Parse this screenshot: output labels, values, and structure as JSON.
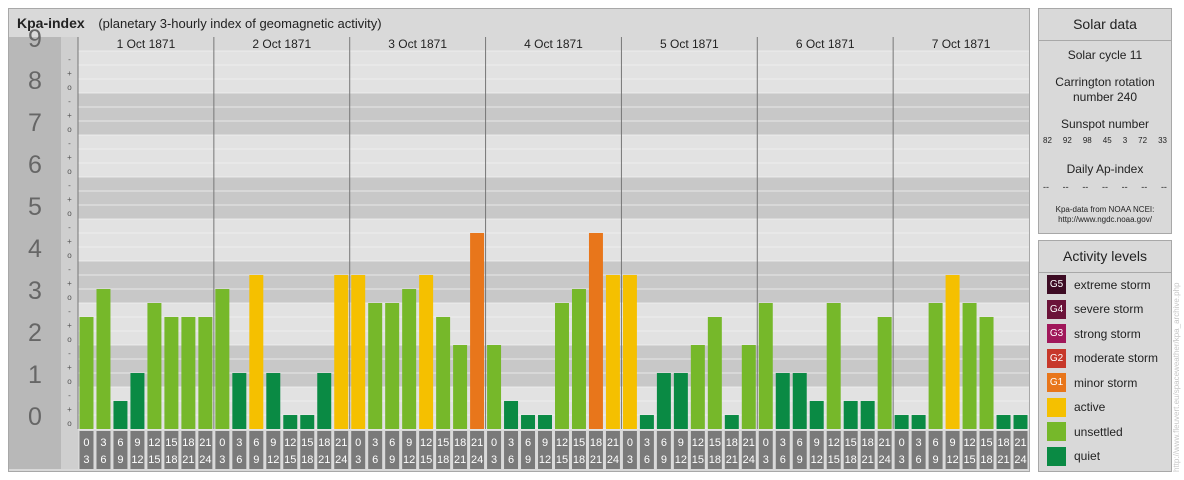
{
  "header": {
    "title": "Kpa-index",
    "subtitle": "(planetary 3-hourly index of geomagnetic activity)"
  },
  "chart_data": {
    "type": "bar",
    "title": "Kpa-index",
    "subtitle": "(planetary 3-hourly index of geomagnetic activity)",
    "ylim": [
      0,
      9
    ],
    "y_ticks": [
      "0",
      "1",
      "2",
      "3",
      "4",
      "5",
      "6",
      "7",
      "8",
      "9"
    ],
    "y_subticks": [
      "o",
      "+",
      "-"
    ],
    "days": [
      "1 Oct 1871",
      "2 Oct 1871",
      "3 Oct 1871",
      "4 Oct 1871",
      "5 Oct 1871",
      "6 Oct 1871",
      "7 Oct 1871"
    ],
    "interval_labels": [
      [
        "0",
        "3"
      ],
      [
        "3",
        "6"
      ],
      [
        "6",
        "9"
      ],
      [
        "9",
        "12"
      ],
      [
        "12",
        "15"
      ],
      [
        "15",
        "18"
      ],
      [
        "18",
        "21"
      ],
      [
        "21",
        "24"
      ]
    ],
    "values": [
      [
        2.667,
        3.333,
        0.667,
        1.333,
        3.0,
        2.667,
        2.667,
        2.667
      ],
      [
        3.333,
        1.333,
        3.667,
        1.333,
        0.333,
        0.333,
        1.333,
        3.667
      ],
      [
        3.667,
        3.0,
        3.0,
        3.333,
        3.667,
        2.667,
        2.0,
        4.667
      ],
      [
        2.0,
        0.667,
        0.333,
        0.333,
        3.0,
        3.333,
        4.667,
        3.667
      ],
      [
        3.667,
        0.333,
        1.333,
        1.333,
        2.0,
        2.667,
        0.333,
        2.0
      ],
      [
        3.0,
        1.333,
        1.333,
        0.667,
        3.0,
        0.667,
        0.667,
        2.667
      ],
      [
        0.333,
        0.333,
        3.0,
        3.667,
        3.0,
        2.667,
        0.333,
        0.333
      ]
    ],
    "grid": true,
    "colors": {
      "quiet": "#0a8a44",
      "unsettled": "#76b82a",
      "active": "#f5c000",
      "minor": "#e8761b",
      "band_dark": "#c8c8c8",
      "band_light": "#e2e2e2",
      "axis_box": "#b8b8b8",
      "label_box": "#7a7a7a"
    }
  },
  "solar": {
    "heading": "Solar data",
    "cycle": "Solar cycle 11",
    "carrington_1": "Carrington rotation",
    "carrington_2": "number 240",
    "sunspot_label": "Sunspot number",
    "sunspots": [
      "82",
      "92",
      "98",
      "45",
      "3",
      "72",
      "33"
    ],
    "ap_label": "Daily Ap-index",
    "ap_values": [
      "--",
      "--",
      "--",
      "--",
      "--",
      "--",
      "--"
    ],
    "credit_1": "Kpa-data from NOAA NCEI:",
    "credit_2": "http://www.ngdc.noaa.gov/"
  },
  "activity": {
    "heading": "Activity levels",
    "levels": [
      {
        "code": "G5",
        "label": "extreme storm",
        "color": "#3d0c24"
      },
      {
        "code": "G4",
        "label": "severe storm",
        "color": "#6b1339"
      },
      {
        "code": "G3",
        "label": "strong storm",
        "color": "#a0175a"
      },
      {
        "code": "G2",
        "label": "moderate storm",
        "color": "#c7382a"
      },
      {
        "code": "G1",
        "label": "minor storm",
        "color": "#e8761b"
      },
      {
        "code": "",
        "label": "active",
        "color": "#f5c000"
      },
      {
        "code": "",
        "label": "unsettled",
        "color": "#76b82a"
      },
      {
        "code": "",
        "label": "quiet",
        "color": "#0a8a44"
      }
    ]
  },
  "watermark": "http://www.fleuvert.eu/spaceweather/kpa_archive.php"
}
